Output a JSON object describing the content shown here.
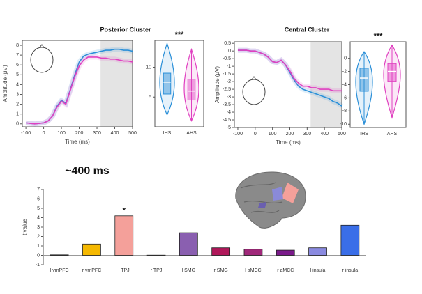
{
  "chart_data": [
    {
      "type": "line",
      "title": "Posterior Cluster",
      "xlabel": "Time (ms)",
      "ylabel": "Amplitude (μV)",
      "x": [
        -100,
        -75,
        -50,
        -25,
        0,
        25,
        50,
        75,
        100,
        125,
        150,
        175,
        200,
        225,
        250,
        275,
        300,
        325,
        350,
        375,
        400,
        425,
        450,
        475,
        500
      ],
      "series": [
        {
          "color": "#2a8fd8",
          "values": [
            0.1,
            0.05,
            0,
            0.05,
            0.1,
            0.3,
            0.8,
            1.8,
            2.4,
            2.1,
            3.5,
            5.0,
            6.3,
            6.9,
            7.1,
            7.2,
            7.3,
            7.4,
            7.5,
            7.5,
            7.6,
            7.6,
            7.5,
            7.5,
            7.4
          ]
        },
        {
          "color": "#e040c0",
          "values": [
            0.1,
            0.05,
            0,
            0.05,
            0.1,
            0.3,
            0.8,
            1.7,
            2.3,
            2.0,
            3.4,
            4.8,
            5.9,
            6.5,
            6.8,
            6.8,
            6.8,
            6.7,
            6.7,
            6.6,
            6.6,
            6.5,
            6.4,
            6.4,
            6.3
          ]
        }
      ],
      "highlight_x": [
        320,
        500
      ],
      "xlim": [
        -120,
        500
      ],
      "xticks": [
        -100,
        0,
        100,
        200,
        300,
        400,
        500
      ],
      "ylim": [
        -0.3,
        8.5
      ],
      "yticks": [
        0,
        1,
        2,
        3,
        4,
        5,
        6,
        7,
        8
      ]
    },
    {
      "type": "box",
      "annotation": "***",
      "categories": [
        "IHS",
        "AHS"
      ],
      "colors": [
        "#2a8fd8",
        "#e040c0"
      ],
      "boxes": [
        {
          "min": 2,
          "q1": 5.5,
          "median": 7.5,
          "q3": 9,
          "max": 14
        },
        {
          "min": 1,
          "q1": 4.5,
          "median": 6,
          "q3": 8,
          "max": 13
        }
      ],
      "ylim": [
        0,
        14.5
      ],
      "yticks": [
        5,
        10
      ]
    },
    {
      "type": "line",
      "title": "Central Cluster",
      "xlabel": "Time (ms)",
      "ylabel": "Amplitude (μV)",
      "x": [
        -100,
        -75,
        -50,
        -25,
        0,
        25,
        50,
        75,
        100,
        125,
        150,
        175,
        200,
        225,
        250,
        275,
        300,
        325,
        350,
        375,
        400,
        425,
        450,
        475,
        500
      ],
      "series": [
        {
          "color": "#2a8fd8",
          "values": [
            0.05,
            0.05,
            0.05,
            0,
            0,
            -0.1,
            -0.2,
            -0.4,
            -0.7,
            -0.75,
            -0.6,
            -0.9,
            -1.4,
            -1.9,
            -2.3,
            -2.5,
            -2.6,
            -2.7,
            -2.8,
            -2.9,
            -3.0,
            -3.1,
            -3.3,
            -3.4,
            -3.6
          ]
        },
        {
          "color": "#e040c0",
          "values": [
            0.05,
            0.05,
            0.05,
            0,
            0,
            -0.1,
            -0.2,
            -0.4,
            -0.7,
            -0.75,
            -0.6,
            -0.9,
            -1.3,
            -1.8,
            -2.1,
            -2.3,
            -2.3,
            -2.4,
            -2.4,
            -2.5,
            -2.5,
            -2.5,
            -2.6,
            -2.6,
            -2.6
          ]
        }
      ],
      "highlight_x": [
        320,
        500
      ],
      "xlim": [
        -120,
        500
      ],
      "xticks": [
        -100,
        0,
        100,
        200,
        300,
        400,
        500
      ],
      "ylim": [
        -5,
        0.6
      ],
      "yticks": [
        0.5,
        0,
        -0.5,
        -1,
        -1.5,
        -2,
        -2.5,
        -3,
        -3.5,
        -4,
        -4.5,
        -5
      ]
    },
    {
      "type": "box",
      "annotation": "***",
      "categories": [
        "IHS",
        "AHS"
      ],
      "colors": [
        "#2a8fd8",
        "#e040c0"
      ],
      "boxes": [
        {
          "min": -10,
          "q1": -5,
          "median": -3,
          "q3": -1.5,
          "max": 1
        },
        {
          "min": -9,
          "q1": -3.5,
          "median": -2,
          "q3": -0.8,
          "max": 2
        }
      ],
      "ylim": [
        -10.5,
        2.5
      ],
      "yticks": [
        0,
        -2,
        -4,
        -6,
        -8,
        -10
      ]
    },
    {
      "type": "bar",
      "title": "~400 ms",
      "ylabel": "t value",
      "categories": [
        "l vmPFC",
        "r vmPFC",
        "l TPJ",
        "r TPJ",
        "l SMG",
        "r SMG",
        "l aMCC",
        "r aMCC",
        "l insula",
        "r insula"
      ],
      "values": [
        0.05,
        1.2,
        4.2,
        0.02,
        2.4,
        0.8,
        0.65,
        0.55,
        0.8,
        3.2
      ],
      "colors": [
        "#4a4a8a",
        "#f5b800",
        "#f4a09a",
        "#c0c0c0",
        "#8a5fb0",
        "#b0185a",
        "#a0287a",
        "#7a1a8a",
        "#8a8ae0",
        "#3a6ee8"
      ],
      "annotations": [
        {
          "text": "*",
          "x": "l TPJ"
        }
      ],
      "ylim": [
        -1,
        7
      ],
      "yticks": [
        -1,
        0,
        1,
        2,
        3,
        4,
        5,
        6,
        7
      ]
    }
  ]
}
